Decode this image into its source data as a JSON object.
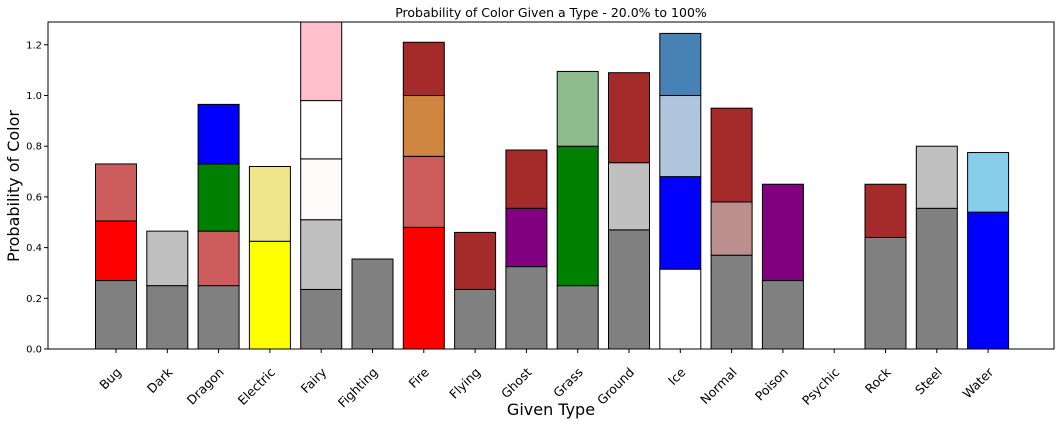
{
  "chart_data": {
    "type": "bar",
    "stacked": true,
    "title": "Probability of Color Given a Type - 20.0% to 100%",
    "xlabel": "Given Type",
    "ylabel": "Probability of Color",
    "ylim": [
      0,
      1.29
    ],
    "yticks": [
      "0.0",
      "0.2",
      "0.4",
      "0.6",
      "0.8",
      "1.0",
      "1.2"
    ],
    "grid": false,
    "categories": [
      "Bug",
      "Dark",
      "Dragon",
      "Electric",
      "Fairy",
      "Fighting",
      "Fire",
      "Flying",
      "Ghost",
      "Grass",
      "Ground",
      "Ice",
      "Normal",
      "Poison",
      "Psychic",
      "Rock",
      "Steel",
      "Water"
    ],
    "bars": [
      [
        {
          "color": "#808080",
          "value": 0.27
        },
        {
          "color": "#ff0000",
          "value": 0.235
        },
        {
          "color": "#cd5c5c",
          "value": 0.225
        }
      ],
      [
        {
          "color": "#808080",
          "value": 0.25
        },
        {
          "color": "#c0c0c0",
          "value": 0.215
        }
      ],
      [
        {
          "color": "#808080",
          "value": 0.25
        },
        {
          "color": "#cd5c5c",
          "value": 0.215
        },
        {
          "color": "#008000",
          "value": 0.265
        },
        {
          "color": "#0000ff",
          "value": 0.235
        }
      ],
      [
        {
          "color": "#ffff00",
          "value": 0.425
        },
        {
          "color": "#f0e68c",
          "value": 0.295
        }
      ],
      [
        {
          "color": "#808080",
          "value": 0.235
        },
        {
          "color": "#c0c0c0",
          "value": 0.275
        },
        {
          "color": "#fffafa",
          "value": 0.24
        },
        {
          "color": "#ffffff",
          "value": 0.23
        },
        {
          "color": "#ffc0cb",
          "value": 0.31
        }
      ],
      [
        {
          "color": "#808080",
          "value": 0.355
        }
      ],
      [
        {
          "color": "#ff0000",
          "value": 0.48
        },
        {
          "color": "#cd5c5c",
          "value": 0.28
        },
        {
          "color": "#cd853f",
          "value": 0.24
        },
        {
          "color": "#a52a2a",
          "value": 0.21
        }
      ],
      [
        {
          "color": "#808080",
          "value": 0.235
        },
        {
          "color": "#a52a2a",
          "value": 0.225
        }
      ],
      [
        {
          "color": "#808080",
          "value": 0.325
        },
        {
          "color": "#800080",
          "value": 0.23
        },
        {
          "color": "#a52a2a",
          "value": 0.23
        }
      ],
      [
        {
          "color": "#808080",
          "value": 0.25
        },
        {
          "color": "#008000",
          "value": 0.55
        },
        {
          "color": "#8fbc8f",
          "value": 0.295
        }
      ],
      [
        {
          "color": "#808080",
          "value": 0.47
        },
        {
          "color": "#c0c0c0",
          "value": 0.265
        },
        {
          "color": "#a52a2a",
          "value": 0.355
        }
      ],
      [
        {
          "color": "#ffffff",
          "value": 0.315
        },
        {
          "color": "#0000ff",
          "value": 0.365
        },
        {
          "color": "#b0c4de",
          "value": 0.32
        },
        {
          "color": "#4682b4",
          "value": 0.245
        }
      ],
      [
        {
          "color": "#808080",
          "value": 0.37
        },
        {
          "color": "#bc8f8f",
          "value": 0.21
        },
        {
          "color": "#a52a2a",
          "value": 0.37
        }
      ],
      [
        {
          "color": "#808080",
          "value": 0.27
        },
        {
          "color": "#800080",
          "value": 0.38
        }
      ],
      [],
      [
        {
          "color": "#808080",
          "value": 0.44
        },
        {
          "color": "#a52a2a",
          "value": 0.21
        }
      ],
      [
        {
          "color": "#808080",
          "value": 0.555
        },
        {
          "color": "#c0c0c0",
          "value": 0.245
        }
      ],
      [
        {
          "color": "#0000ff",
          "value": 0.54
        },
        {
          "color": "#87ceeb",
          "value": 0.235
        }
      ]
    ]
  }
}
